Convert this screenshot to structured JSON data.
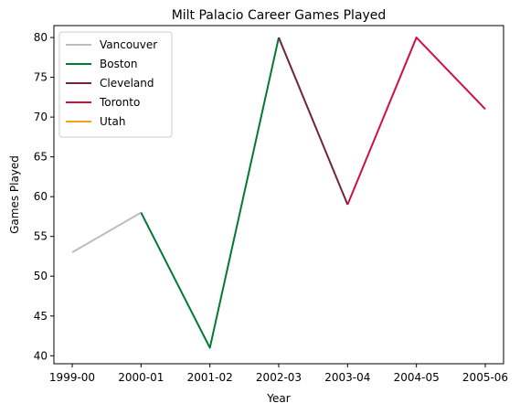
{
  "chart_data": {
    "type": "line",
    "title": "Milt Palacio Career Games Played",
    "xlabel": "Year",
    "ylabel": "Games Played",
    "categories": [
      "1999-00",
      "2000-01",
      "2001-02",
      "2002-03",
      "2003-04",
      "2004-05",
      "2005-06"
    ],
    "ylim": [
      39,
      81.5
    ],
    "yticks": [
      40,
      45,
      50,
      55,
      60,
      65,
      70,
      75,
      80
    ],
    "grid": false,
    "legend_position": "top-left",
    "series": [
      {
        "name": "Vancouver",
        "color": "#bdbdbd",
        "points": [
          [
            0,
            53
          ],
          [
            1,
            58
          ]
        ]
      },
      {
        "name": "Boston",
        "color": "#007a33",
        "points": [
          [
            1,
            58
          ],
          [
            2,
            41
          ],
          [
            3,
            80
          ]
        ]
      },
      {
        "name": "Cleveland",
        "color": "#6f263d",
        "points": [
          [
            3,
            80
          ],
          [
            4,
            59
          ]
        ]
      },
      {
        "name": "Toronto",
        "color": "#ce1141",
        "points": [
          [
            4,
            59
          ],
          [
            5,
            80
          ],
          [
            6,
            71
          ]
        ]
      },
      {
        "name": "Utah",
        "color": "#f9a01b",
        "points": []
      }
    ]
  }
}
